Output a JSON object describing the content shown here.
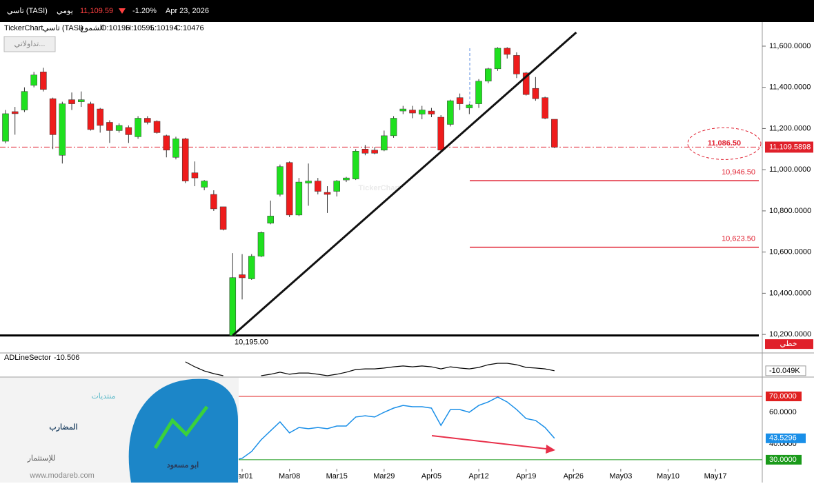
{
  "header": {
    "symbol": "تاسي (TASI)",
    "period": "يومي",
    "price": "11,109.59",
    "change": "-1.20%",
    "date": "Apr 23, 2026"
  },
  "chart_data": [
    {
      "type": "candlestick",
      "source": "TickerChart",
      "name": "تاسي (TASI)",
      "style": "الشموع",
      "ohlc_labels": [
        "O:10195",
        "H:10595",
        "L:10194",
        "C:10476"
      ],
      "button": "تداولاتي...",
      "watermark": "TickerChart",
      "scale_mode": "خطي",
      "up_color": "#1fe01f",
      "down_color": "#ee1c1c",
      "open": [
        11138,
        11282,
        11290,
        11410,
        11475,
        11345,
        11070,
        11340,
        11330,
        11320,
        11295,
        11230,
        11190,
        11205,
        11160,
        11250,
        11235,
        11165,
        11060,
        11150,
        10985,
        10915,
        10880,
        10820,
        10195,
        10490,
        10470,
        10580,
        10740,
        10880,
        11035,
        10780,
        10935,
        10945,
        10890,
        10895,
        10950,
        10955,
        11100,
        11095,
        11095,
        11165,
        11285,
        11290,
        11270,
        11285,
        11255,
        11220,
        11350,
        11300,
        11320,
        11430,
        11490,
        11590,
        11555,
        11470,
        11395,
        11350,
        11245
      ],
      "high": [
        11290,
        11305,
        11400,
        11475,
        11495,
        11350,
        11330,
        11375,
        11380,
        11330,
        11300,
        11240,
        11225,
        11215,
        11260,
        11260,
        11240,
        11170,
        11160,
        11155,
        11040,
        10950,
        10900,
        10820,
        10595,
        10590,
        10590,
        10700,
        10850,
        11025,
        11040,
        10960,
        11030,
        10960,
        10920,
        10950,
        10965,
        11100,
        11120,
        11110,
        11190,
        11260,
        11310,
        11310,
        11310,
        11300,
        11265,
        11340,
        11370,
        11320,
        11440,
        11495,
        11595,
        11595,
        11570,
        11475,
        11450,
        11355,
        11245
      ],
      "low": [
        11128,
        11170,
        11280,
        11400,
        11380,
        11100,
        11030,
        11290,
        11305,
        11190,
        11180,
        11130,
        11180,
        11130,
        11150,
        11220,
        11175,
        11060,
        11050,
        10935,
        10920,
        10900,
        10800,
        10705,
        10194,
        10370,
        10465,
        10575,
        10735,
        10870,
        10770,
        10775,
        10825,
        10880,
        10790,
        10870,
        10940,
        10950,
        11070,
        11075,
        11090,
        11155,
        11270,
        11250,
        11245,
        11255,
        11090,
        11210,
        11290,
        11270,
        11300,
        11420,
        11480,
        11540,
        11445,
        11360,
        11335,
        11245,
        11105
      ],
      "close": [
        11272,
        11272,
        11380,
        11460,
        11390,
        11170,
        11320,
        11320,
        11340,
        11195,
        11215,
        11190,
        11215,
        11170,
        11250,
        11230,
        11180,
        11095,
        11150,
        10945,
        10960,
        10945,
        10810,
        10710,
        10476,
        10475,
        10580,
        10695,
        10775,
        11015,
        10780,
        10940,
        10945,
        10895,
        10880,
        10945,
        10960,
        11090,
        11080,
        11080,
        11165,
        11250,
        11295,
        11275,
        11290,
        11270,
        11095,
        11335,
        11320,
        11315,
        11430,
        11490,
        11590,
        11560,
        11465,
        11365,
        11345,
        11250,
        11109.59
      ],
      "xlim": [
        -0.583,
        79.95
      ],
      "xticks": [
        {
          "value": 25,
          "label": "Mar01"
        },
        {
          "value": 30,
          "label": "Mar08"
        },
        {
          "value": 35,
          "label": "Mar15"
        },
        {
          "value": 40,
          "label": "Mar29"
        },
        {
          "value": 45,
          "label": "Apr05"
        },
        {
          "value": 50,
          "label": "Apr12"
        },
        {
          "value": 55,
          "label": "Apr19"
        },
        {
          "value": 60,
          "label": "Apr26"
        },
        {
          "value": 65,
          "label": "May03"
        },
        {
          "value": 70,
          "label": "May10"
        },
        {
          "value": 75,
          "label": "May17"
        }
      ],
      "ylim": [
        10110,
        11707
      ],
      "yticks": [
        {
          "value": 11600,
          "label": "11,600.0000"
        },
        {
          "value": 11400,
          "label": "11,400.0000"
        },
        {
          "value": 11200,
          "label": "11,200.0000"
        },
        {
          "value": 11000,
          "label": "11,000.0000"
        },
        {
          "value": 10800,
          "label": "10,800.0000"
        },
        {
          "value": 10600,
          "label": "10,600.0000"
        },
        {
          "value": 10400,
          "label": "10,400.0000"
        },
        {
          "value": 10200,
          "label": "10,200.0000"
        }
      ],
      "last_price": {
        "value": 11109.5898,
        "label": "11,109.5898"
      },
      "levels": [
        {
          "value": 11086.5,
          "label": "11,086.50",
          "color": "#e02030",
          "style": "circled"
        },
        {
          "value": 10946.5,
          "label": "10,946.50",
          "color": "#e02030",
          "style": "line"
        },
        {
          "value": 10623.5,
          "label": "10,623.50",
          "color": "#e02030",
          "style": "line"
        },
        {
          "value": 10195,
          "label": "10,195.00",
          "color": "#000000",
          "style": "support"
        }
      ],
      "trendline": {
        "x": [
          24,
          60.3
        ],
        "y": [
          10195,
          11667
        ]
      }
    },
    {
      "type": "line",
      "name": "ADLineSector",
      "value_label": "-10.506",
      "color": "#000000",
      "ylim": [
        -10.08,
        -9.95
      ],
      "values": [
        null,
        null,
        null,
        null,
        null,
        null,
        null,
        null,
        null,
        null,
        null,
        null,
        null,
        null,
        null,
        null,
        null,
        null,
        null,
        -9.993,
        -10.024,
        -10.05,
        -10.067,
        -10.08,
        null,
        null,
        null,
        -10.08,
        -10.071,
        -10.058,
        -10.071,
        -10.063,
        -10.063,
        -10.071,
        -10.08,
        -10.071,
        -10.058,
        -10.041,
        -10.037,
        -10.037,
        -10.032,
        -10.024,
        -10.019,
        -10.024,
        -10.019,
        -10.024,
        -10.037,
        -10.024,
        -10.032,
        -10.037,
        -10.028,
        -10.011,
        -10.002,
        -10.002,
        -10.011,
        -10.028,
        -10.032,
        -10.037,
        -10.049
      ],
      "last": {
        "value": -10.049,
        "label": "-10.049K"
      }
    },
    {
      "type": "line",
      "color": "#1a8fe8",
      "ylim": [
        24.3,
        80.9
      ],
      "yticks": [
        {
          "value": 70,
          "label": "70.0000",
          "color": "#e02020"
        },
        {
          "value": 60,
          "label": "60.0000"
        },
        {
          "value": 40,
          "label": "40.0000"
        },
        {
          "value": 30,
          "label": "30.0000",
          "color": "#1a9a1a"
        }
      ],
      "values": [
        null,
        null,
        null,
        null,
        null,
        null,
        null,
        null,
        null,
        null,
        null,
        null,
        null,
        null,
        null,
        null,
        null,
        null,
        null,
        null,
        null,
        null,
        null,
        null,
        29.6,
        30.9,
        35.2,
        42.6,
        48.3,
        53.9,
        47,
        50.4,
        49.6,
        50.4,
        49.6,
        51.3,
        51.3,
        57,
        57.8,
        57,
        60,
        62.6,
        64.3,
        63.5,
        63.5,
        62.6,
        51.7,
        61.7,
        61.7,
        60,
        64.3,
        66.5,
        69.6,
        66.5,
        61.7,
        56,
        54.8,
        50.4,
        43.5296
      ],
      "last": {
        "value": 43.5296,
        "label": "43.5296"
      }
    }
  ],
  "logo": {
    "top": "منتديات",
    "name": "المضارب",
    "sub": "للإستثمار",
    "author": "ابو مسعود",
    "site": "www.modareb.com"
  }
}
